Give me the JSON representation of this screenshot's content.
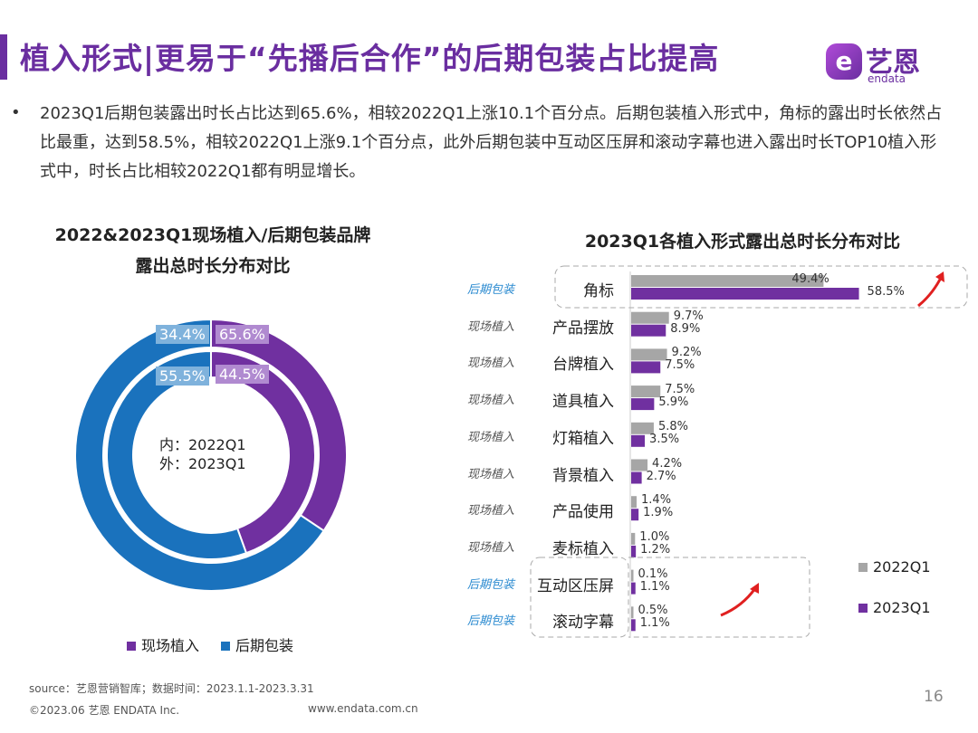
{
  "header": {
    "title": "植入形式|更易于“先播后合作”的后期包装占比提高",
    "logo_cn": "艺恩",
    "logo_en": "endata",
    "logo_mark": "e"
  },
  "bullet": "•",
  "description": "2023Q1后期包装露出时长占比达到65.6%，相较2022Q1上涨10.1个百分点。后期包装植入形式中，角标的露出时长依然占比最重，达到58.5%，相较2022Q1上涨9.1个百分点，此外后期包装中互动区压屏和滚动字幕也进入露出时长TOP10植入形式中，时长占比相较2022Q1都有明显增长。",
  "chart_data": [
    {
      "type": "pie",
      "title": "2022&2023Q1现场植入/后期包装品牌露出总时长分布对比",
      "title_line1": "2022&2023Q1现场植入/后期包装品牌",
      "title_line2": "露出总时长分布对比",
      "center_label_1": "内：2022Q1",
      "center_label_2": "外：2023Q1",
      "categories": [
        "现场植入",
        "后期包装"
      ],
      "colors": [
        "#7030a0",
        "#1a72bd"
      ],
      "series": [
        {
          "name": "2022Q1",
          "ring": "inner",
          "values": [
            44.5,
            55.5
          ],
          "labels": [
            "44.5%",
            "55.5%"
          ]
        },
        {
          "name": "2023Q1",
          "ring": "outer",
          "values": [
            34.4,
            65.6
          ],
          "labels": [
            "34.4%",
            "65.6%"
          ]
        }
      ],
      "legend": [
        "现场植入",
        "后期包装"
      ],
      "legend_position": "bottom"
    },
    {
      "type": "bar",
      "orientation": "horizontal",
      "title": "2023Q1各植入形式露出总时长分布对比",
      "categories": [
        "角标",
        "产品摆放",
        "台牌植入",
        "道具植入",
        "灯箱植入",
        "背景植入",
        "产品使用",
        "麦标植入",
        "互动区压屏",
        "滚动字幕"
      ],
      "groups": [
        "后期包装",
        "现场植入",
        "现场植入",
        "现场植入",
        "现场植入",
        "现场植入",
        "现场植入",
        "现场植入",
        "后期包装",
        "后期包装"
      ],
      "series": [
        {
          "name": "2022Q1",
          "color": "#a6a6a6",
          "values": [
            49.4,
            9.7,
            9.2,
            7.5,
            5.8,
            4.2,
            1.4,
            1.0,
            0.1,
            0.5
          ]
        },
        {
          "name": "2023Q1",
          "color": "#7030a0",
          "values": [
            58.5,
            8.9,
            7.5,
            5.9,
            3.5,
            2.7,
            1.9,
            1.2,
            1.1,
            1.1
          ]
        }
      ],
      "legend_position": "right"
    }
  ],
  "footer": {
    "source": "source：艺恩营销智库；数据时间：2023.1.1-2023.3.31",
    "copyright": "©2023.06 艺恩 ENDATA Inc.",
    "site": "www.endata.com.cn",
    "page": "16"
  }
}
